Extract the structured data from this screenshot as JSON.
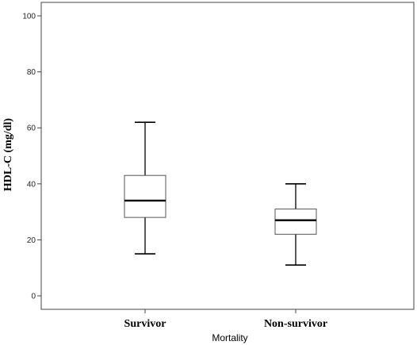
{
  "chart_data": {
    "type": "box",
    "xlabel": "Mortality",
    "ylabel": "HDL-C (mg/dl)",
    "ylim": [
      0,
      100
    ],
    "yticks": [
      0,
      20,
      40,
      60,
      80,
      100
    ],
    "categories": [
      "Survivor",
      "Non-survivor"
    ],
    "boxes": [
      {
        "category": "Survivor",
        "min": 15,
        "q1": 28,
        "median": 34,
        "q3": 43,
        "max": 62
      },
      {
        "category": "Non-survivor",
        "min": 11,
        "q1": 22,
        "median": 27,
        "q3": 31,
        "max": 40
      }
    ],
    "grid": false,
    "colors": {
      "box_fill": "#ffffff",
      "stroke": "#000000",
      "frame": "#444444"
    }
  }
}
